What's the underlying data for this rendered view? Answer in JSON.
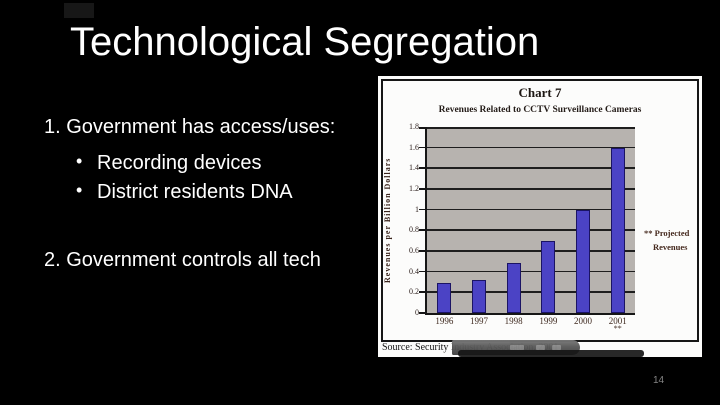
{
  "slide": {
    "title": "Technological Segregation",
    "page_number": "14"
  },
  "body": {
    "bullet_char": "•",
    "items": [
      {
        "number": "1.",
        "text": "Government has access/uses:",
        "subitems": [
          "Recording devices",
          "District residents DNA"
        ]
      },
      {
        "number": "2.",
        "text": "Government controls all tech",
        "subitems": []
      }
    ]
  },
  "chart_data": {
    "type": "bar",
    "title": "Chart 7",
    "subtitle": "Revenues Related to CCTV Surveillance Cameras",
    "ylabel": "Revenues per Billion Dollars",
    "xlabel": "",
    "categories": [
      "1996",
      "1997",
      "1998",
      "1999",
      "2000",
      "2001"
    ],
    "values": [
      0.29,
      0.32,
      0.48,
      0.7,
      1.0,
      1.6
    ],
    "ylim": [
      0,
      1.8
    ],
    "yticks": [
      "0",
      "0.2",
      "0.4",
      "0.6",
      "0.8",
      "1",
      "1.2",
      "1.4",
      "1.6",
      "1.8"
    ],
    "grid": true,
    "legend_position": "right",
    "legend_lines": [
      "** Projected",
      "Revenues"
    ],
    "footnote_category": "2001",
    "footnote_marker": "**",
    "source": "Source: Security Industry Association, 2001",
    "bar_color": "#4b43c5",
    "plot_bg": "#b7b3af"
  }
}
